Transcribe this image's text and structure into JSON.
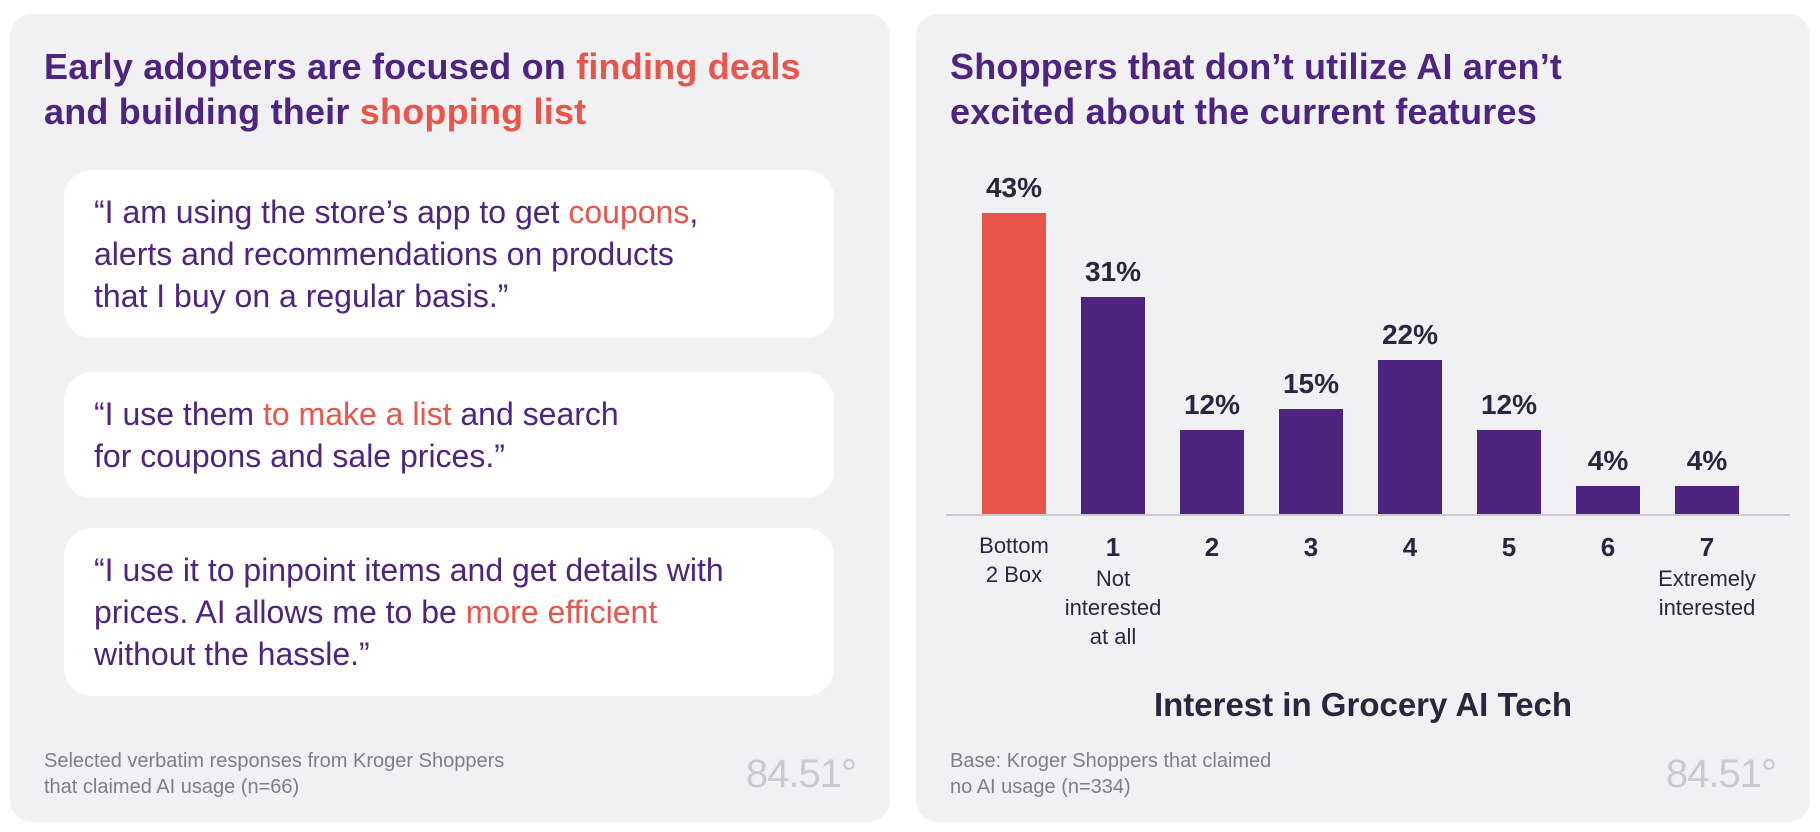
{
  "left": {
    "title_lines": [
      [
        {
          "text": "Early adopters are focused on ",
          "hl": false
        },
        {
          "text": "finding deals",
          "hl": true
        }
      ],
      [
        {
          "text": "and building their ",
          "hl": false
        },
        {
          "text": "shopping list",
          "hl": true
        }
      ]
    ],
    "quotes": [
      {
        "lines": [
          [
            {
              "text": "“I am using the store’s app to get ",
              "hl": false
            },
            {
              "text": "coupons",
              "hl": true
            },
            {
              "text": ",",
              "hl": false
            }
          ],
          [
            {
              "text": "alerts and recommendations on products",
              "hl": false
            }
          ],
          [
            {
              "text": "that I buy on a regular basis.”",
              "hl": false
            }
          ]
        ]
      },
      {
        "lines": [
          [
            {
              "text": "“I use them ",
              "hl": false
            },
            {
              "text": "to make a list",
              "hl": true
            },
            {
              "text": " and search",
              "hl": false
            }
          ],
          [
            {
              "text": "for coupons and sale prices.”",
              "hl": false
            }
          ]
        ]
      },
      {
        "lines": [
          [
            {
              "text": "“I use it to pinpoint items and get details with",
              "hl": false
            }
          ],
          [
            {
              "text": "prices. AI allows me to be ",
              "hl": false
            },
            {
              "text": "more efficient",
              "hl": true
            }
          ],
          [
            {
              "text": "without the hassle.”",
              "hl": false
            }
          ]
        ]
      }
    ],
    "footnote_lines": [
      "Selected verbatim responses from Kroger Shoppers",
      "that claimed AI usage (n=66)"
    ],
    "logo": "84.51°"
  },
  "right": {
    "title_lines": [
      "Shoppers that don’t utilize AI aren’t",
      "excited about the current features"
    ],
    "footnote_lines": [
      "Base: Kroger Shoppers that claimed",
      "no AI usage (n=334)"
    ],
    "logo": "84.51°"
  },
  "colors": {
    "purple": "#4e2481",
    "coral": "#e8554a",
    "title": "#4e2481",
    "dark": "#2b2640",
    "muted": "#7d7d8b"
  },
  "chart_data": {
    "type": "bar",
    "title": "Interest in Grocery AI Tech",
    "xlabel": "Interest in Grocery AI Tech",
    "ylabel": "",
    "ylim": [
      0,
      45
    ],
    "unit": "%",
    "grid": false,
    "categories": [
      {
        "number": "",
        "sub": [
          "Bottom",
          "2 Box"
        ],
        "value": 43,
        "highlight": true
      },
      {
        "number": "1",
        "sub": [
          "Not",
          "interested",
          "at all"
        ],
        "value": 31,
        "highlight": false
      },
      {
        "number": "2",
        "sub": [],
        "value": 12,
        "highlight": false
      },
      {
        "number": "3",
        "sub": [],
        "value": 15,
        "highlight": false
      },
      {
        "number": "4",
        "sub": [],
        "value": 22,
        "highlight": false
      },
      {
        "number": "5",
        "sub": [],
        "value": 12,
        "highlight": false
      },
      {
        "number": "6",
        "sub": [],
        "value": 4,
        "highlight": false
      },
      {
        "number": "7",
        "sub": [
          "Extremely",
          "interested"
        ],
        "value": 4,
        "highlight": false
      }
    ]
  }
}
